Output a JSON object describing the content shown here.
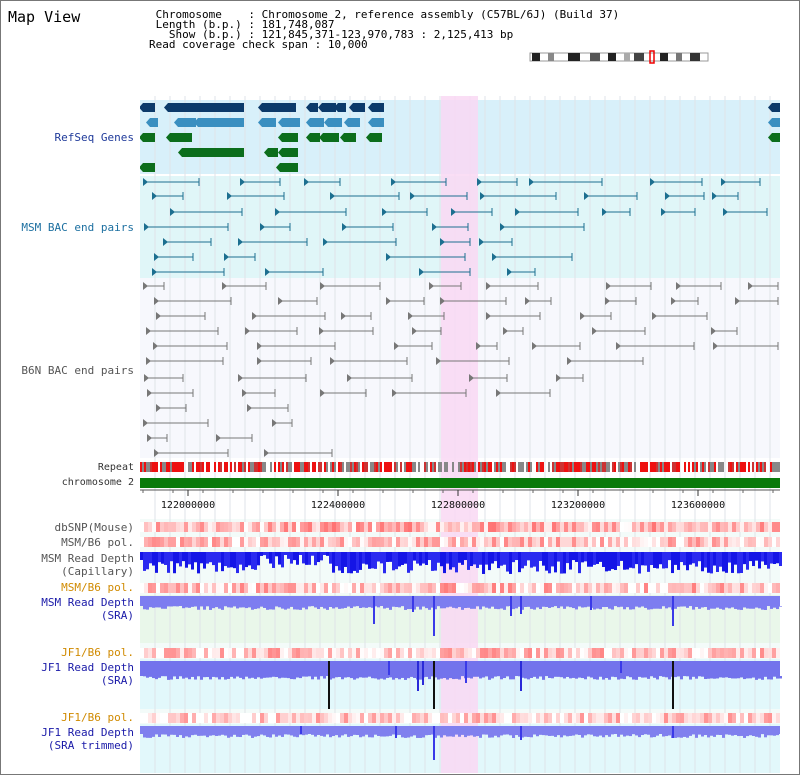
{
  "header": {
    "title": "Map View",
    "chromosome_label": "Chromosome    ",
    "chromosome_value": "Chromosome 2, reference assembly (C57BL/6J) (Build 37)",
    "length_label": "Length (b.p.)",
    "length_value": "181,748,087",
    "show_label": "  Show (b.p.)",
    "show_value": "121,845,371-123,970,783 : 2,125,413 bp",
    "coverage_label": "Read coverage check span",
    "coverage_value": "10,000"
  },
  "tracks": {
    "refseq": "RefSeq Genes",
    "msm_bac": "MSM BAC end pairs",
    "b6n_bac": "B6N BAC end pairs",
    "repeat": "Repeat",
    "chromosome": "chromosome 2",
    "dbsnp": "dbSNP(Mouse)",
    "msm_b6_pol": "MSM/B6 pol.",
    "msm_read_depth_cap_1": "MSM Read Depth",
    "msm_read_depth_cap_2": "(Capillary)",
    "msm_b6_pol_2": "MSM/B6 pol.",
    "msm_read_depth_sra_1": "MSM Read Depth",
    "msm_read_depth_sra_2": "(SRA)",
    "jf1_b6_pol": "JF1/B6 pol.",
    "jf1_read_depth_1": "JF1 Read Depth",
    "jf1_read_depth_2": "(SRA)",
    "jf1_b6_pol_2": "JF1/B6 pol.",
    "jf1_trim_1": "JF1 Read Depth",
    "jf1_trim_2": "(SRA trimmed)"
  },
  "axis": {
    "ticks": [
      "122000000",
      "122400000",
      "122800000",
      "123200000",
      "123600000"
    ]
  },
  "colors": {
    "refseq_bg": "#d8f0fa",
    "msm_bg": "#e0f6f8",
    "b6n_bg": "#f7f8fd",
    "highlight": "#f9d8f3",
    "chromosome": "#0a7a0a"
  }
}
